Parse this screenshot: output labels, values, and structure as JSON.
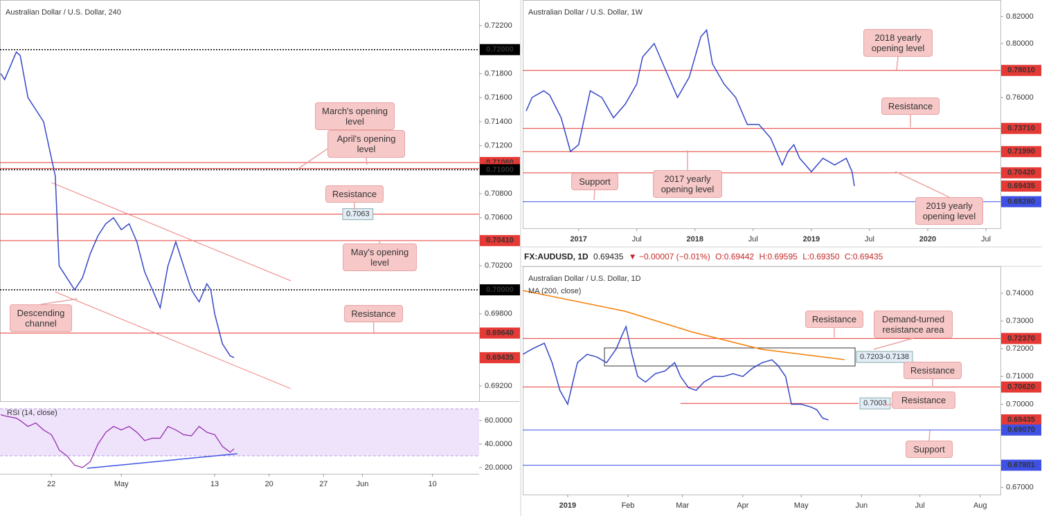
{
  "header": {
    "symbol": "FX:AUDUSD, 1D",
    "price": "0.69435",
    "change": "▼ −0.00007 (−0.01%)",
    "open": "O:0.69442",
    "high": "H:0.69595",
    "low": "L:0.69350",
    "close": "C:0.69435"
  },
  "chart_data": [
    {
      "type": "line",
      "title": "Australian Dollar / U.S. Dollar, 240",
      "x": [
        105.5,
        106,
        107.5,
        108,
        109,
        110,
        111,
        112,
        112.5,
        113,
        114,
        115,
        116,
        117,
        118,
        119,
        120,
        121,
        122,
        123,
        124,
        125,
        126,
        127,
        128,
        129,
        130,
        131,
        132,
        132.5,
        133,
        134,
        135,
        135.5
      ],
      "series": [
        {
          "color": "#3346c7",
          "values": [
            0.718,
            0.7175,
            0.7198,
            0.7195,
            0.716,
            0.715,
            0.714,
            0.711,
            0.7095,
            0.702,
            0.701,
            0.7,
            0.701,
            0.703,
            0.7045,
            0.7055,
            0.706,
            0.705,
            0.7055,
            0.704,
            0.7015,
            0.7,
            0.6985,
            0.702,
            0.704,
            0.702,
            0.7,
            0.699,
            0.7005,
            0.7,
            0.698,
            0.6955,
            0.6945,
            0.69435
          ]
        }
      ],
      "xlim": [
        105.4,
        167
      ],
      "xticks": [
        {
          "value": 112,
          "label": "22"
        },
        {
          "value": 121,
          "label": "May"
        },
        {
          "value": 133,
          "label": "13"
        },
        {
          "value": 140,
          "label": "20"
        },
        {
          "value": 147,
          "label": "27"
        },
        {
          "value": 152,
          "label": "Jun"
        },
        {
          "value": 161,
          "label": "10"
        }
      ],
      "ylim": [
        0.69073,
        0.72413
      ],
      "yticks": [
        {
          "value": 0.722,
          "label": "0.72200"
        },
        {
          "value": 0.718,
          "label": "0.71800"
        },
        {
          "value": 0.716,
          "label": "0.71600"
        },
        {
          "value": 0.714,
          "label": "0.71400"
        },
        {
          "value": 0.712,
          "label": "0.71200"
        },
        {
          "value": 0.708,
          "label": "0.70800"
        },
        {
          "value": 0.706,
          "label": "0.70600"
        },
        {
          "value": 0.702,
          "label": "0.70200"
        },
        {
          "value": 0.698,
          "label": "0.69800"
        },
        {
          "value": 0.692,
          "label": "0.69200"
        }
      ],
      "levels": [
        {
          "value": 0.72,
          "label": "0.72000",
          "color": "#000000",
          "style": "dotted"
        },
        {
          "value": 0.7106,
          "label": "0.71060",
          "color": "#e53935"
        },
        {
          "value": 0.7101,
          "label": "0.71010",
          "color": "#e53935"
        },
        {
          "value": 0.71,
          "label": "0.71000",
          "color": "#000000",
          "style": "dotted"
        },
        {
          "value": 0.7063,
          "tag": "0.7063",
          "color": "#e53935"
        },
        {
          "value": 0.7041,
          "label": "0.70410",
          "color": "#e53935"
        },
        {
          "value": 0.7,
          "label": "0.70000",
          "color": "#000000",
          "style": "dotted"
        },
        {
          "value": 0.6964,
          "label": "0.69640",
          "color": "#e53935"
        },
        {
          "value": 0.69435,
          "label": "0.69435",
          "color": "#e53935",
          "style": "none"
        }
      ],
      "trendlines": [
        {
          "color": "#f08080",
          "x": [
            112,
            142.8
          ],
          "y": [
            0.70893,
            0.70075
          ]
        },
        {
          "color": "#f08080",
          "x": [
            112.5,
            142.8
          ],
          "y": [
            0.69983,
            0.69177
          ]
        }
      ],
      "annotations": [
        "March's opening level",
        "April's opening level",
        "Resistance",
        "May's opening level",
        "Descending channel",
        "Resistance"
      ],
      "rsi": {
        "title": "RSI (14, close)",
        "color": "#8e24aa",
        "values": [
          65,
          64,
          62,
          60,
          55,
          58,
          52,
          48,
          42,
          35,
          30,
          22,
          20,
          25,
          40,
          50,
          55,
          52,
          55,
          50,
          43,
          45,
          45,
          55,
          52,
          48,
          47,
          55,
          50,
          49,
          48,
          38,
          33,
          36
        ],
        "ylim": [
          14.7,
          76.5
        ],
        "yticks": [
          {
            "value": 60,
            "label": "60.0000"
          },
          {
            "value": 40,
            "label": "40.0000"
          },
          {
            "value": 20,
            "label": "20.0000"
          }
        ],
        "band": [
          30,
          70
        ],
        "trendline": {
          "color": "#3f51e5",
          "x": [
            116.6,
            135.9
          ],
          "y": [
            19.4,
            31.8
          ]
        }
      }
    },
    {
      "type": "line",
      "title": "Australian Dollar / U.S. Dollar, 1W",
      "x": [
        2016.55,
        2016.6,
        2016.7,
        2016.75,
        2016.85,
        2016.93,
        2017.0,
        2017.1,
        2017.2,
        2017.3,
        2017.4,
        2017.5,
        2017.55,
        2017.6,
        2017.65,
        2017.7,
        2017.75,
        2017.85,
        2017.95,
        2018.05,
        2018.1,
        2018.15,
        2018.25,
        2018.35,
        2018.45,
        2018.55,
        2018.65,
        2018.75,
        2018.8,
        2018.85,
        2018.9,
        2018.95,
        2019.0,
        2019.1,
        2019.2,
        2019.3,
        2019.35,
        2019.37
      ],
      "series": [
        {
          "color": "#3346c7",
          "values": [
            0.75,
            0.76,
            0.765,
            0.762,
            0.745,
            0.72,
            0.725,
            0.765,
            0.76,
            0.745,
            0.755,
            0.77,
            0.79,
            0.795,
            0.8,
            0.79,
            0.78,
            0.76,
            0.775,
            0.805,
            0.81,
            0.785,
            0.77,
            0.76,
            0.74,
            0.74,
            0.73,
            0.71,
            0.72,
            0.725,
            0.715,
            0.71,
            0.705,
            0.715,
            0.71,
            0.715,
            0.705,
            0.6943
          ]
        }
      ],
      "xlim": [
        2016.52,
        2020.625
      ],
      "xticks": [
        2017,
        {
          "value": 2017.5,
          "label": "Jul"
        },
        2018,
        {
          "value": 2018.5,
          "label": "Jul"
        },
        2019,
        {
          "value": 2019.5,
          "label": "Jul"
        },
        2020,
        {
          "value": 2020.5,
          "label": "Jul"
        }
      ],
      "ylim": [
        0.6631,
        0.8323
      ],
      "yticks": [
        {
          "value": 0.82,
          "label": "0.82000"
        },
        {
          "value": 0.8,
          "label": "0.80000"
        },
        {
          "value": 0.76,
          "label": "0.76000"
        }
      ],
      "levels": [
        {
          "value": 0.7801,
          "label": "0.78010",
          "color": "#e53935"
        },
        {
          "value": 0.7371,
          "label": "0.73710",
          "color": "#e53935"
        },
        {
          "value": 0.7199,
          "label": "0.71990",
          "color": "#e53935"
        },
        {
          "value": 0.7042,
          "label": "0.70420",
          "color": "#e53935"
        },
        {
          "value": 0.69435,
          "label": "0.69435",
          "color": "#e53935",
          "style": "none"
        },
        {
          "value": 0.6828,
          "label": "0.68280",
          "color": "#3f51e5"
        }
      ],
      "annotations": [
        "2018 yearly opening level",
        "Resistance",
        "Support",
        "2017 yearly opening level",
        "2019 yearly opening level"
      ]
    },
    {
      "type": "line",
      "title": "Australian Dollar / U.S. Dollar, 1D",
      "x": [
        -23,
        -18,
        -12,
        -8,
        -4,
        0,
        5,
        10,
        15,
        20,
        25,
        28,
        30,
        33,
        36,
        40,
        45,
        50,
        55,
        58,
        62,
        66,
        70,
        75,
        80,
        85,
        90,
        95,
        100,
        105,
        108,
        112,
        115,
        120,
        125,
        128,
        131,
        134
      ],
      "series": [
        {
          "color": "#3346c7",
          "values": [
            0.718,
            0.72,
            0.722,
            0.715,
            0.705,
            0.7,
            0.715,
            0.718,
            0.717,
            0.715,
            0.72,
            0.725,
            0.728,
            0.718,
            0.71,
            0.708,
            0.711,
            0.712,
            0.715,
            0.71,
            0.706,
            0.705,
            0.708,
            0.71,
            0.71,
            0.711,
            0.71,
            0.713,
            0.715,
            0.716,
            0.714,
            0.71,
            0.7,
            0.7,
            0.699,
            0.698,
            0.695,
            0.69435
          ]
        }
      ],
      "ma": {
        "label": "MA (200, close)",
        "color": "#f57c00",
        "x": [
          -23.1,
          29.5,
          64,
          99.6,
          142.3
        ],
        "values": [
          0.741,
          0.73352,
          0.72604,
          0.7198,
          0.71606
        ]
      },
      "xlim": [
        -23.1,
        222.4
      ],
      "xticks": [
        {
          "value": 0,
          "label": "2019"
        },
        {
          "value": 31,
          "label": "Feb"
        },
        {
          "value": 59,
          "label": "Mar"
        },
        {
          "value": 90,
          "label": "Apr"
        },
        {
          "value": 120,
          "label": "May"
        },
        {
          "value": 151,
          "label": "Jun"
        },
        {
          "value": 181,
          "label": "Jul"
        },
        {
          "value": 212,
          "label": "Aug"
        }
      ],
      "ylim": [
        0.66743,
        0.74973
      ],
      "yticks": [
        {
          "value": 0.74,
          "label": "0.74000"
        },
        {
          "value": 0.73,
          "label": "0.73000"
        },
        {
          "value": 0.72,
          "label": "0.72000"
        },
        {
          "value": 0.71,
          "label": "0.71000"
        },
        {
          "value": 0.7,
          "label": "0.70000"
        },
        {
          "value": 0.67,
          "label": "0.67000"
        }
      ],
      "levels": [
        {
          "value": 0.7237,
          "label": "0.72370",
          "color": "#e53935"
        },
        {
          "value": 0.7062,
          "label": "0.70620",
          "color": "#e53935"
        },
        {
          "value": 0.7003,
          "tag": "0.7003",
          "color": "#e53935",
          "x": [
            58,
            149.5
          ]
        },
        {
          "value": 0.69435,
          "label": "0.69435",
          "color": "#e53935",
          "style": "none"
        },
        {
          "value": 0.6907,
          "label": "0.69070",
          "color": "#3f51e5"
        },
        {
          "value": 0.67801,
          "label": "0.67801",
          "color": "#3f51e5"
        }
      ],
      "zone": {
        "range": [
          0.7203,
          0.7138
        ],
        "x": [
          18.9,
          147.7
        ],
        "tag": "0.7203-0.7138"
      },
      "annotations": [
        "Resistance",
        "Demand-turned resistance area",
        "Resistance",
        "Resistance",
        "Support"
      ]
    }
  ]
}
